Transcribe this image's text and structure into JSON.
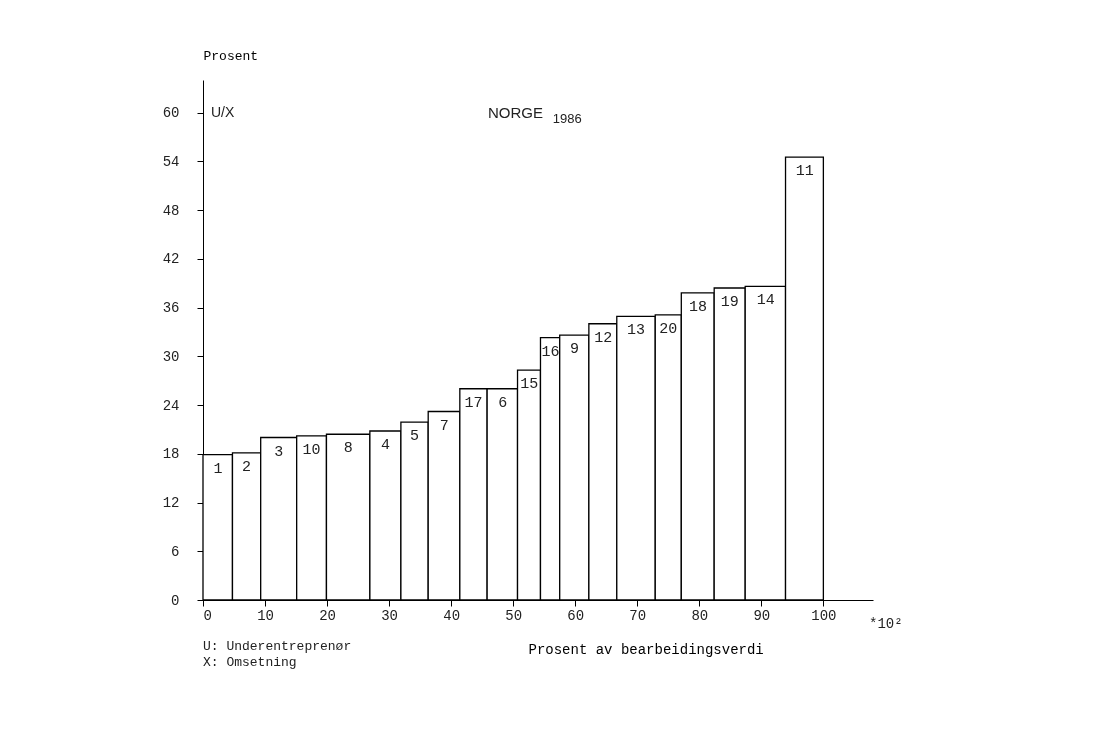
{
  "chart_data": {
    "type": "histogram",
    "title": "NORGE $_{1986}$",
    "xlabel": "Prosent av bearbeidingsverdi",
    "ylabel": "Prosent",
    "bins": [
      0,
      4.75,
      9.3,
      15.1,
      19.9,
      26.9,
      31.9,
      36.3,
      41.4,
      45.8,
      50.7,
      54.4,
      57.5,
      62.2,
      66.7,
      72.9,
      77.1,
      82.4,
      87.4,
      93.9,
      100
    ],
    "values": [
      17.9,
      18.1,
      20.0,
      20.2,
      20.4,
      20.8,
      21.9,
      23.2,
      26.0,
      26.0,
      28.3,
      32.3,
      32.6,
      34.0,
      34.9,
      35.1,
      37.8,
      38.4,
      38.6,
      54.5
    ],
    "color": "#ffffff",
    "xlim": [
      0,
      108
    ],
    "ylim": [
      0,
      64
    ],
    "xticks": [
      0,
      10,
      20,
      30,
      40,
      50,
      60,
      70,
      80,
      90,
      100
    ],
    "yticks": [
      0,
      6,
      12,
      18,
      24,
      30,
      36,
      42,
      48,
      54,
      60
    ],
    "grid": false,
    "annotations": [
      "U/X",
      "*10²",
      "U: Underentreprenør",
      "X: Omsetning",
      {
        "text": "1",
        "x": 2.4,
        "y": 17.9
      },
      {
        "text": "2",
        "x": 7.0,
        "y": 18.1
      },
      {
        "text": "3",
        "x": 12.2,
        "y": 20.0
      },
      {
        "text": "10",
        "x": 17.5,
        "y": 20.2
      },
      {
        "text": "8",
        "x": 23.4,
        "y": 20.4
      },
      {
        "text": "4",
        "x": 29.4,
        "y": 20.8
      },
      {
        "text": "5",
        "x": 34.1,
        "y": 21.9
      },
      {
        "text": "7",
        "x": 38.9,
        "y": 23.2
      },
      {
        "text": "17",
        "x": 43.6,
        "y": 26.0
      },
      {
        "text": "6",
        "x": 48.3,
        "y": 26.0
      },
      {
        "text": "15",
        "x": 52.6,
        "y": 28.3
      },
      {
        "text": "16",
        "x": 56.0,
        "y": 32.3
      },
      {
        "text": "9",
        "x": 59.9,
        "y": 32.6
      },
      {
        "text": "12",
        "x": 64.5,
        "y": 34.0
      },
      {
        "text": "13",
        "x": 69.8,
        "y": 34.9
      },
      {
        "text": "20",
        "x": 75.0,
        "y": 35.1
      },
      {
        "text": "18",
        "x": 79.8,
        "y": 37.8
      },
      {
        "text": "19",
        "x": 84.9,
        "y": 38.4
      },
      {
        "text": "14",
        "x": 90.7,
        "y": 38.6
      },
      {
        "text": "11",
        "x": 97.0,
        "y": 54.5
      }
    ]
  }
}
